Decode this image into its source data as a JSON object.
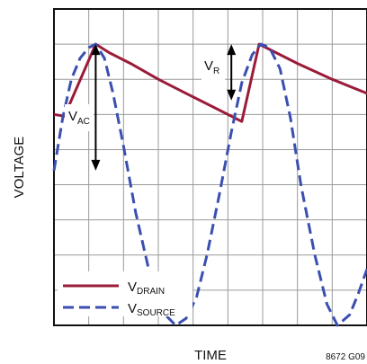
{
  "chart_data": {
    "type": "line",
    "title": "",
    "xlabel": "TIME",
    "ylabel": "VOLTAGE",
    "grid": true,
    "xlim": [
      0,
      9
    ],
    "ylim": [
      0,
      9
    ],
    "legend_position": "bottom-left",
    "footnote": "8672 G09",
    "series": [
      {
        "name": "V",
        "name_sub": "DRAIN",
        "color": "#9b1b3a",
        "style": "solid",
        "x": [
          0,
          0.3,
          1.2,
          1.6,
          2.2,
          3.0,
          3.8,
          4.6,
          5.4,
          5.9,
          7.0,
          8.0,
          9.0
        ],
        "y": [
          6.0,
          5.95,
          8.0,
          7.75,
          7.45,
          7.0,
          6.6,
          6.2,
          5.8,
          8.0,
          7.45,
          7.0,
          6.6
        ]
      },
      {
        "name": "V",
        "name_sub": "SOURCE",
        "color": "#3b4fb0",
        "style": "dashed",
        "x": [
          0,
          0.25,
          0.5,
          0.75,
          1.0,
          1.2,
          1.45,
          1.7,
          2.0,
          2.35,
          2.7,
          3.1,
          3.5,
          3.8,
          4.1,
          4.4,
          4.75,
          5.1,
          5.4,
          5.7,
          5.95,
          6.2,
          6.5,
          6.8,
          7.1,
          7.5,
          7.85,
          8.15,
          8.5,
          8.75,
          9.0
        ],
        "y": [
          4.4,
          5.9,
          7.0,
          7.6,
          7.9,
          8.0,
          7.6,
          6.6,
          5.1,
          3.2,
          1.7,
          0.4,
          0.0,
          0.2,
          0.8,
          2.0,
          3.7,
          5.5,
          6.9,
          7.7,
          8.0,
          7.9,
          7.3,
          5.9,
          4.0,
          2.0,
          0.6,
          0.0,
          0.3,
          0.9,
          1.6
        ]
      }
    ],
    "annotations": [
      {
        "main": "V",
        "sub": "AC"
      },
      {
        "main": "V",
        "sub": "R"
      }
    ]
  }
}
